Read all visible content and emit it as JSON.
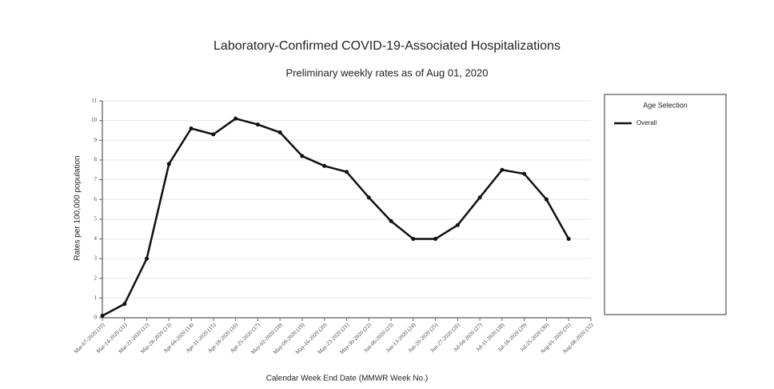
{
  "chart_data": {
    "type": "line",
    "title": "Laboratory-Confirmed COVID-19-Associated Hospitalizations",
    "subtitle": "Preliminary weekly rates as of Aug 01, 2020",
    "x_label": "Calendar Week End Date (MMWR Week No.)",
    "y_label": "Rates per 100,000 population",
    "legend_title": "Age Selection",
    "categories": [
      "Mar-07-2020 (10)",
      "Mar-14-2020 (11)",
      "Mar-21-2020 (12)",
      "Mar-28-2020 (13)",
      "Apr-04-2020 (14)",
      "Apr-11-2020 (15)",
      "Apr-18-2020 (16)",
      "Apr-25-2020 (17)",
      "May-02-2020 (18)",
      "May-09-2020 (19)",
      "May-16-2020 (20)",
      "May-23-2020 (21)",
      "May-30-2020 (22)",
      "Jun-06-2020 (23)",
      "Jun-13-2020 (24)",
      "Jun-20-2020 (25)",
      "Jun-27-2020 (26)",
      "Jul-04-2020 (27)",
      "Jul-11-2020 (28)",
      "Jul-18-2020 (29)",
      "Jul-25-2020 (30)",
      "Aug-01-2020 (31)",
      "Aug-08-2020 (32)"
    ],
    "series": [
      {
        "name": "Overall",
        "color": "#111111",
        "values": [
          0.1,
          0.7,
          3.0,
          7.8,
          9.6,
          9.3,
          10.1,
          9.8,
          9.4,
          8.2,
          7.7,
          7.4,
          6.1,
          4.9,
          4.0,
          4.0,
          4.7,
          6.1,
          7.5,
          7.3,
          6.0,
          4.0,
          null
        ]
      }
    ],
    "ylim": [
      0,
      11
    ],
    "yticks": [
      0,
      1,
      2,
      3,
      4,
      5,
      6,
      7,
      8,
      9,
      10,
      11
    ],
    "grid": true
  }
}
